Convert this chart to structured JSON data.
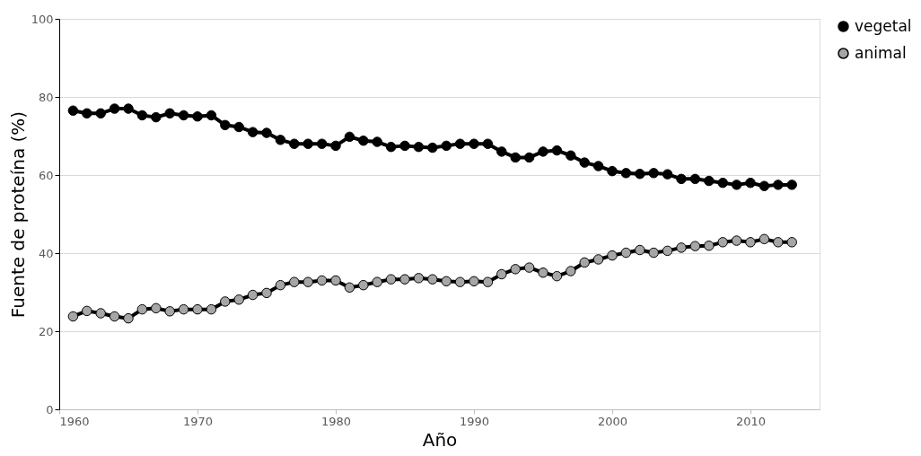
{
  "chart_data": {
    "type": "line",
    "xlabel": "Año",
    "ylabel": "Fuente de proteína (%)",
    "x": [
      1961,
      1962,
      1963,
      1964,
      1965,
      1966,
      1967,
      1968,
      1969,
      1970,
      1971,
      1972,
      1973,
      1974,
      1975,
      1976,
      1977,
      1978,
      1979,
      1980,
      1981,
      1982,
      1983,
      1984,
      1985,
      1986,
      1987,
      1988,
      1989,
      1990,
      1991,
      1992,
      1993,
      1994,
      1995,
      1996,
      1997,
      1998,
      1999,
      2000,
      2001,
      2002,
      2003,
      2004,
      2005,
      2006,
      2007,
      2008,
      2009,
      2010,
      2011,
      2012,
      2013
    ],
    "series": [
      {
        "name": "vegetal",
        "color": "#000000",
        "values": [
          76.5,
          75.8,
          75.8,
          77,
          77,
          75.3,
          74.8,
          75.8,
          75.3,
          75,
          75.3,
          72.8,
          72.3,
          71,
          70.8,
          69,
          68,
          68,
          68,
          67.5,
          69.8,
          68.8,
          68.5,
          67.2,
          67.5,
          67.2,
          67,
          67.5,
          68,
          68,
          68,
          66,
          64.5,
          64.5,
          66,
          66.3,
          65,
          63.2,
          62.3,
          61,
          60.5,
          60.3,
          60.5,
          60.2,
          59,
          59,
          58.5,
          58,
          57.5,
          58,
          57.2,
          57.5,
          57.5
        ]
      },
      {
        "name": "animal",
        "color": "#a6a6a6",
        "values": [
          23.8,
          25.2,
          24.6,
          23.8,
          23.3,
          25.6,
          25.9,
          25.1,
          25.6,
          25.6,
          25.6,
          27.6,
          28.1,
          29.3,
          29.8,
          31.8,
          32.6,
          32.6,
          33,
          33,
          31.2,
          31.8,
          32.6,
          33.3,
          33.3,
          33.6,
          33.3,
          32.8,
          32.6,
          32.8,
          32.6,
          34.6,
          35.9,
          36.3,
          35,
          34.1,
          35.4,
          37.6,
          38.4,
          39.4,
          40.1,
          40.8,
          40.1,
          40.6,
          41.4,
          41.8,
          41.9,
          42.8,
          43.2,
          42.8,
          43.6,
          42.8,
          42.8
        ]
      }
    ],
    "xlim": [
      1960,
      2015
    ],
    "xticks": [
      1960,
      1970,
      1980,
      1990,
      2000,
      2010
    ],
    "ylim": [
      0,
      100
    ],
    "yticks": [
      0,
      20,
      40,
      60,
      80,
      100
    ],
    "grid": "y",
    "legend": "right",
    "marker": "circle",
    "line_style": "solid"
  }
}
